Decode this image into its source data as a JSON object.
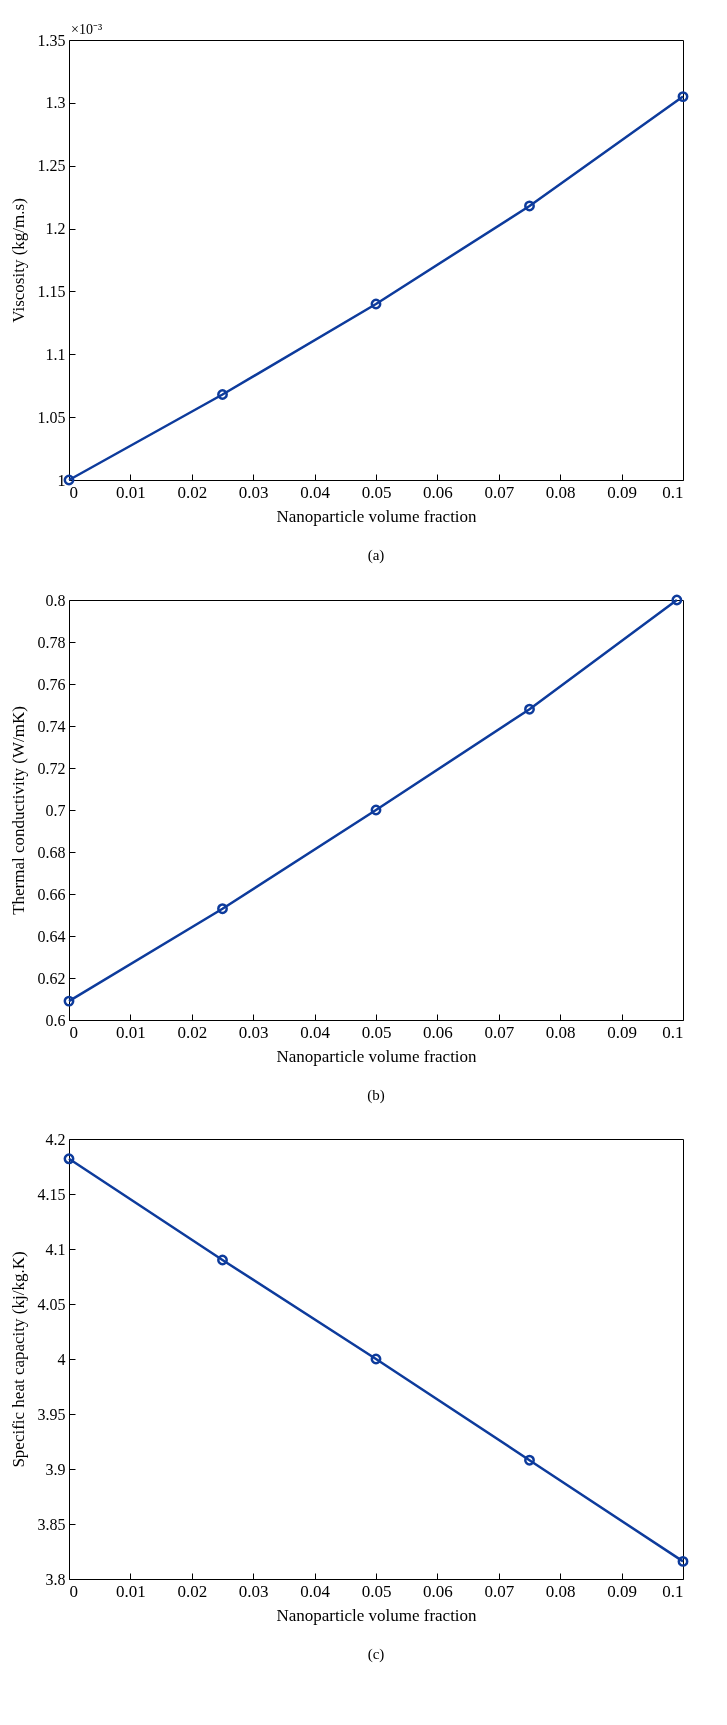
{
  "chart_data": [
    {
      "type": "line",
      "xlabel": "Nanoparticle volume fraction",
      "ylabel": "Viscosity (kg/m.s)",
      "annotations": [
        "×10⁻³",
        "(a)"
      ],
      "x": [
        0,
        0.025,
        0.05,
        0.075,
        0.1
      ],
      "values": [
        1.0,
        1.068,
        1.14,
        1.218,
        1.305
      ],
      "color": "#0d3b9c",
      "xlim": [
        0,
        0.1
      ],
      "ylim": [
        1,
        1.35
      ],
      "xticks": [
        0,
        0.01,
        0.02,
        0.03,
        0.04,
        0.05,
        0.06,
        0.07,
        0.08,
        0.09,
        0.1
      ],
      "yticks": [
        1,
        1.05,
        1.1,
        1.15,
        1.2,
        1.25,
        1.3,
        1.35
      ],
      "marker": "circle",
      "line_style": "solid",
      "grid": false
    },
    {
      "type": "line",
      "xlabel": "Nanoparticle volume fraction",
      "ylabel": "Thermal conductivity (W/mK)",
      "annotations": [
        "(b)"
      ],
      "x": [
        0,
        0.025,
        0.05,
        0.075,
        0.099
      ],
      "values": [
        0.609,
        0.653,
        0.7,
        0.748,
        0.8
      ],
      "color": "#0d3b9c",
      "xlim": [
        0,
        0.1
      ],
      "ylim": [
        0.6,
        0.8
      ],
      "xticks": [
        0,
        0.01,
        0.02,
        0.03,
        0.04,
        0.05,
        0.06,
        0.07,
        0.08,
        0.09,
        0.1
      ],
      "yticks": [
        0.6,
        0.62,
        0.64,
        0.66,
        0.68,
        0.7,
        0.72,
        0.74,
        0.76,
        0.78,
        0.8
      ],
      "marker": "circle",
      "line_style": "solid",
      "grid": false
    },
    {
      "type": "line",
      "xlabel": "Nanoparticle volume fraction",
      "ylabel": "Specific heat capacity (kj/kg.K)",
      "annotations": [
        "(c)"
      ],
      "x": [
        0,
        0.025,
        0.05,
        0.075,
        0.1
      ],
      "values": [
        4.182,
        4.09,
        4.0,
        3.908,
        3.816
      ],
      "color": "#0d3b9c",
      "xlim": [
        0,
        0.1
      ],
      "ylim": [
        3.8,
        4.2
      ],
      "xticks": [
        0,
        0.01,
        0.02,
        0.03,
        0.04,
        0.05,
        0.06,
        0.07,
        0.08,
        0.09,
        0.1
      ],
      "yticks": [
        3.8,
        3.85,
        3.9,
        3.95,
        4,
        4.05,
        4.1,
        4.15,
        4.2
      ],
      "marker": "circle",
      "line_style": "solid",
      "grid": false
    }
  ]
}
